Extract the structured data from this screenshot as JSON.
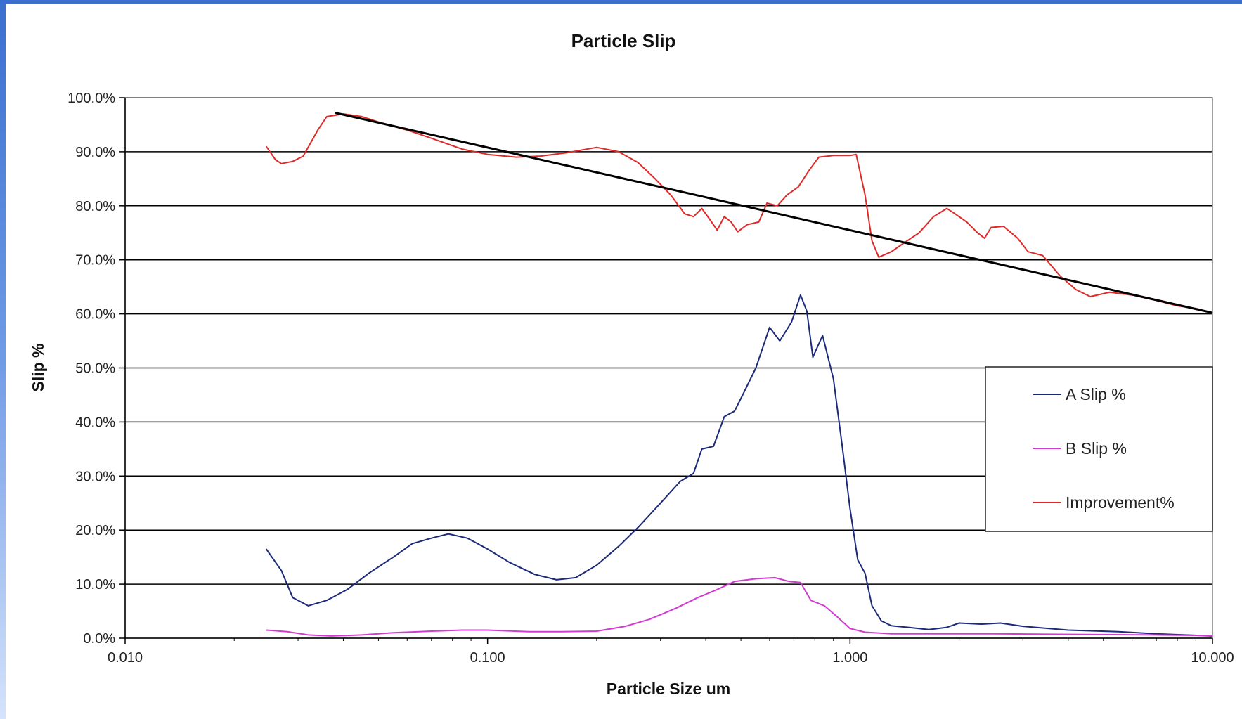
{
  "chart_data": {
    "type": "line",
    "title": "Particle Slip",
    "xlabel": "Particle Size um",
    "ylabel": "Slip %",
    "x_scale": "log",
    "xlim": [
      0.01,
      10
    ],
    "ylim": [
      0,
      100
    ],
    "x_ticks": [
      {
        "value": 0.01,
        "label": "0.010"
      },
      {
        "value": 0.1,
        "label": "0.100"
      },
      {
        "value": 1,
        "label": "1.000"
      },
      {
        "value": 10,
        "label": "10.000"
      }
    ],
    "y_ticks": [
      {
        "value": 0,
        "label": "0.0%"
      },
      {
        "value": 10,
        "label": "10.0%"
      },
      {
        "value": 20,
        "label": "20.0%"
      },
      {
        "value": 30,
        "label": "30.0%"
      },
      {
        "value": 40,
        "label": "40.0%"
      },
      {
        "value": 50,
        "label": "50.0%"
      },
      {
        "value": 60,
        "label": "60.0%"
      },
      {
        "value": 70,
        "label": "70.0%"
      },
      {
        "value": 80,
        "label": "80.0%"
      },
      {
        "value": 90,
        "label": "90.0%"
      },
      {
        "value": 100,
        "label": "100.0%"
      }
    ],
    "grid": "horizontal",
    "legend_position": "right",
    "series": [
      {
        "name": "A Slip %",
        "color": "#1c2a7a",
        "points": [
          [
            0.0245,
            16.5
          ],
          [
            0.027,
            12.5
          ],
          [
            0.029,
            7.5
          ],
          [
            0.032,
            6.0
          ],
          [
            0.036,
            7.0
          ],
          [
            0.041,
            9.0
          ],
          [
            0.047,
            12.0
          ],
          [
            0.055,
            15.0
          ],
          [
            0.062,
            17.5
          ],
          [
            0.07,
            18.5
          ],
          [
            0.078,
            19.3
          ],
          [
            0.088,
            18.5
          ],
          [
            0.1,
            16.5
          ],
          [
            0.115,
            14.0
          ],
          [
            0.135,
            11.8
          ],
          [
            0.155,
            10.8
          ],
          [
            0.175,
            11.2
          ],
          [
            0.2,
            13.5
          ],
          [
            0.23,
            17.0
          ],
          [
            0.26,
            20.5
          ],
          [
            0.3,
            25.0
          ],
          [
            0.34,
            29.0
          ],
          [
            0.37,
            30.5
          ],
          [
            0.39,
            35.0
          ],
          [
            0.42,
            35.5
          ],
          [
            0.45,
            41.0
          ],
          [
            0.48,
            42.0
          ],
          [
            0.51,
            45.5
          ],
          [
            0.55,
            50.0
          ],
          [
            0.6,
            57.5
          ],
          [
            0.64,
            55.0
          ],
          [
            0.69,
            58.5
          ],
          [
            0.73,
            63.5
          ],
          [
            0.76,
            60.5
          ],
          [
            0.79,
            52.0
          ],
          [
            0.84,
            56.0
          ],
          [
            0.9,
            48.0
          ],
          [
            0.95,
            36.0
          ],
          [
            1.0,
            24.0
          ],
          [
            1.05,
            14.5
          ],
          [
            1.1,
            12.0
          ],
          [
            1.15,
            6.0
          ],
          [
            1.22,
            3.2
          ],
          [
            1.3,
            2.3
          ],
          [
            1.45,
            2.0
          ],
          [
            1.65,
            1.6
          ],
          [
            1.85,
            2.0
          ],
          [
            2.0,
            2.8
          ],
          [
            2.3,
            2.6
          ],
          [
            2.6,
            2.8
          ],
          [
            3.0,
            2.2
          ],
          [
            4.0,
            1.5
          ],
          [
            5.5,
            1.2
          ],
          [
            7.0,
            0.8
          ],
          [
            10.0,
            0.4
          ]
        ]
      },
      {
        "name": "B Slip %",
        "color": "#d23bd1",
        "points": [
          [
            0.0245,
            1.5
          ],
          [
            0.028,
            1.2
          ],
          [
            0.032,
            0.6
          ],
          [
            0.037,
            0.4
          ],
          [
            0.045,
            0.6
          ],
          [
            0.055,
            1.0
          ],
          [
            0.07,
            1.3
          ],
          [
            0.085,
            1.5
          ],
          [
            0.1,
            1.5
          ],
          [
            0.13,
            1.2
          ],
          [
            0.16,
            1.2
          ],
          [
            0.2,
            1.3
          ],
          [
            0.24,
            2.2
          ],
          [
            0.28,
            3.5
          ],
          [
            0.33,
            5.5
          ],
          [
            0.38,
            7.5
          ],
          [
            0.43,
            9.0
          ],
          [
            0.48,
            10.5
          ],
          [
            0.55,
            11.0
          ],
          [
            0.62,
            11.2
          ],
          [
            0.68,
            10.5
          ],
          [
            0.73,
            10.3
          ],
          [
            0.78,
            7.0
          ],
          [
            0.85,
            6.0
          ],
          [
            0.92,
            4.0
          ],
          [
            1.0,
            1.8
          ],
          [
            1.1,
            1.1
          ],
          [
            1.3,
            0.8
          ],
          [
            1.7,
            0.8
          ],
          [
            2.5,
            0.8
          ],
          [
            4.0,
            0.7
          ],
          [
            7.0,
            0.6
          ],
          [
            10.0,
            0.5
          ]
        ]
      },
      {
        "name": "Improvement%",
        "color": "#e02a2a",
        "points": [
          [
            0.0245,
            91.0
          ],
          [
            0.026,
            88.5
          ],
          [
            0.027,
            87.8
          ],
          [
            0.029,
            88.2
          ],
          [
            0.031,
            89.2
          ],
          [
            0.034,
            94.0
          ],
          [
            0.036,
            96.5
          ],
          [
            0.04,
            97.0
          ],
          [
            0.045,
            96.5
          ],
          [
            0.05,
            95.5
          ],
          [
            0.06,
            94.0
          ],
          [
            0.07,
            92.5
          ],
          [
            0.085,
            90.5
          ],
          [
            0.1,
            89.5
          ],
          [
            0.12,
            89.0
          ],
          [
            0.14,
            89.2
          ],
          [
            0.165,
            89.8
          ],
          [
            0.2,
            90.8
          ],
          [
            0.23,
            90.0
          ],
          [
            0.26,
            88.0
          ],
          [
            0.29,
            85.0
          ],
          [
            0.32,
            82.0
          ],
          [
            0.35,
            78.5
          ],
          [
            0.37,
            78.0
          ],
          [
            0.39,
            79.5
          ],
          [
            0.41,
            77.5
          ],
          [
            0.43,
            75.5
          ],
          [
            0.45,
            78.0
          ],
          [
            0.47,
            77.0
          ],
          [
            0.49,
            75.2
          ],
          [
            0.52,
            76.5
          ],
          [
            0.56,
            77.0
          ],
          [
            0.59,
            80.5
          ],
          [
            0.63,
            80.0
          ],
          [
            0.67,
            82.0
          ],
          [
            0.72,
            83.5
          ],
          [
            0.77,
            86.5
          ],
          [
            0.82,
            89.0
          ],
          [
            0.9,
            89.3
          ],
          [
            1.0,
            89.3
          ],
          [
            1.04,
            89.5
          ],
          [
            1.1,
            82.0
          ],
          [
            1.15,
            73.5
          ],
          [
            1.2,
            70.5
          ],
          [
            1.3,
            71.5
          ],
          [
            1.4,
            73.0
          ],
          [
            1.55,
            75.0
          ],
          [
            1.7,
            78.0
          ],
          [
            1.85,
            79.5
          ],
          [
            1.95,
            78.5
          ],
          [
            2.1,
            77.0
          ],
          [
            2.25,
            75.0
          ],
          [
            2.35,
            74.0
          ],
          [
            2.45,
            76.0
          ],
          [
            2.65,
            76.2
          ],
          [
            2.9,
            74.0
          ],
          [
            3.1,
            71.5
          ],
          [
            3.4,
            70.8
          ],
          [
            3.8,
            67.0
          ],
          [
            4.2,
            64.5
          ],
          [
            4.6,
            63.2
          ],
          [
            5.2,
            64.0
          ],
          [
            6.0,
            63.5
          ],
          [
            7.0,
            62.5
          ],
          [
            8.0,
            61.5
          ],
          [
            9.0,
            61.0
          ],
          [
            10.0,
            60.2
          ]
        ]
      },
      {
        "name": "",
        "color": "#000000",
        "role": "trendline",
        "points": [
          [
            0.038,
            97.2
          ],
          [
            10.0,
            60.2
          ]
        ]
      }
    ],
    "legend_entries": [
      "A Slip %",
      "B Slip %",
      "Improvement%"
    ]
  }
}
